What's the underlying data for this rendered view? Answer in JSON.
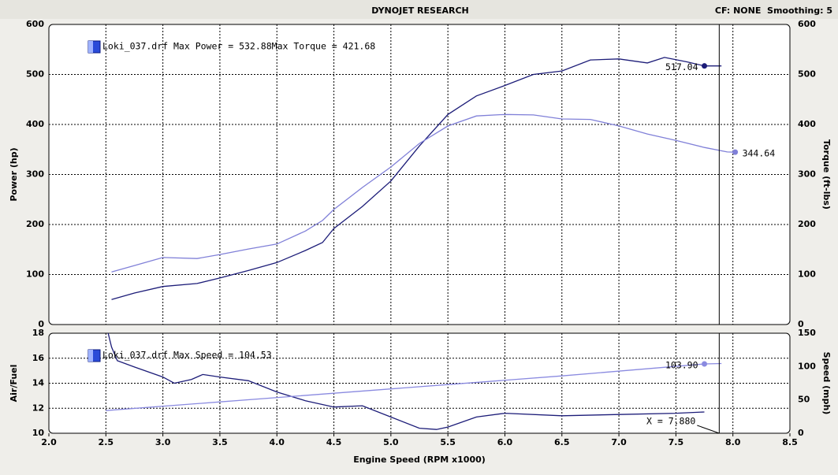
{
  "header": {
    "title": "DYNOJET RESEARCH",
    "info": "CF: NONE  Smoothing: 5"
  },
  "chart_data": [
    {
      "type": "line",
      "ylabel": "Power (hp)",
      "y2label": "Torque (ft-lbs)",
      "legend": "upper left",
      "legend_text": [
        "Loki_037.drf Max Power = 532.88",
        "Max Torque = 421.68"
      ],
      "xlim": [
        2.0,
        8.5
      ],
      "ylim": [
        0,
        600
      ],
      "yticks": [
        0,
        100,
        200,
        300,
        400,
        500,
        600
      ],
      "y2lim": [
        0,
        600
      ],
      "y2ticks": [
        0,
        100,
        200,
        300,
        400,
        500,
        600
      ],
      "grid": true,
      "series": [
        {
          "name": "Power",
          "color": "#1c1c78",
          "x": [
            2.55,
            2.75,
            3.0,
            3.3,
            3.5,
            3.75,
            4.0,
            4.25,
            4.4,
            4.5,
            4.75,
            5.0,
            5.25,
            5.5,
            5.75,
            6.0,
            6.25,
            6.5,
            6.75,
            7.0,
            7.25,
            7.4,
            7.6,
            7.75,
            7.9
          ],
          "values": [
            50,
            63,
            76,
            82,
            93,
            108,
            124,
            148,
            164,
            192,
            236,
            287,
            357,
            420,
            457,
            478,
            500,
            507,
            529,
            531,
            523,
            534,
            525,
            517,
            517
          ]
        },
        {
          "name": "Torque",
          "color": "#8080d8",
          "axis": "y2",
          "x": [
            2.55,
            2.75,
            3.0,
            3.3,
            3.5,
            3.75,
            4.0,
            4.25,
            4.4,
            4.5,
            4.75,
            5.0,
            5.25,
            5.5,
            5.75,
            6.0,
            6.25,
            6.5,
            6.75,
            7.0,
            7.25,
            7.5,
            7.75,
            7.95,
            8.02
          ],
          "values": [
            105,
            118,
            134,
            132,
            140,
            151,
            161,
            187,
            208,
            230,
            274,
            315,
            362,
            397,
            417,
            420,
            419,
            411,
            410,
            397,
            381,
            368,
            354,
            345,
            344.64
          ]
        }
      ],
      "annotations": [
        {
          "series": 0,
          "x": 7.75,
          "value": 517.04
        },
        {
          "series": 1,
          "x": 8.02,
          "value": 344.64
        }
      ]
    },
    {
      "type": "line",
      "ylabel": "Air/Fuel",
      "y2label": "Speed (mph)",
      "xlabel": "Engine Speed (RPM x1000)",
      "legend": "upper left",
      "legend_text": [
        "Loki_037.drf Max Speed = 104.53"
      ],
      "xlim": [
        2.0,
        8.5
      ],
      "xticks": [
        {
          "value": 2.0,
          "label": "2.0"
        },
        2.5,
        {
          "value": 3.0,
          "label": "3.0"
        },
        3.5,
        {
          "value": 4.0,
          "label": "4.0"
        },
        4.5,
        {
          "value": 5.0,
          "label": "5.0"
        },
        5.5,
        {
          "value": 6.0,
          "label": "6.0"
        },
        6.5,
        {
          "value": 7.0,
          "label": "7.0"
        },
        7.5,
        {
          "value": 8.0,
          "label": "8.0"
        },
        8.5
      ],
      "ylim": [
        10,
        18
      ],
      "yticks": [
        10,
        12,
        14,
        16,
        18
      ],
      "y2lim": [
        0,
        150
      ],
      "y2ticks": [
        0,
        50,
        100,
        150
      ],
      "grid": true,
      "series": [
        {
          "name": "Air/Fuel",
          "color": "#1c1c78",
          "x": [
            2.52,
            2.55,
            2.6,
            2.75,
            3.0,
            3.1,
            3.25,
            3.35,
            3.5,
            3.75,
            4.0,
            4.25,
            4.5,
            4.75,
            5.0,
            5.25,
            5.4,
            5.5,
            5.75,
            6.0,
            6.5,
            7.0,
            7.5,
            7.75
          ],
          "values": [
            18,
            16.9,
            15.8,
            15.3,
            14.5,
            14.0,
            14.3,
            14.7,
            14.5,
            14.2,
            13.3,
            12.6,
            12.1,
            12.2,
            11.3,
            10.4,
            10.3,
            10.5,
            11.3,
            11.6,
            11.4,
            11.5,
            11.6,
            11.7
          ]
        },
        {
          "name": "Speed",
          "color": "#8a8ae0",
          "axis": "y2",
          "x": [
            2.5,
            3.5,
            4.5,
            5.5,
            6.5,
            7.75,
            7.9
          ],
          "values": [
            34,
            47,
            60,
            73,
            86,
            103.9,
            104.53
          ]
        }
      ],
      "annotations": [
        {
          "series": 1,
          "x": 7.75,
          "value": 103.9,
          "label": "103.90"
        }
      ],
      "cursor": {
        "x": 7.88,
        "label": "X = 7.880"
      }
    }
  ]
}
